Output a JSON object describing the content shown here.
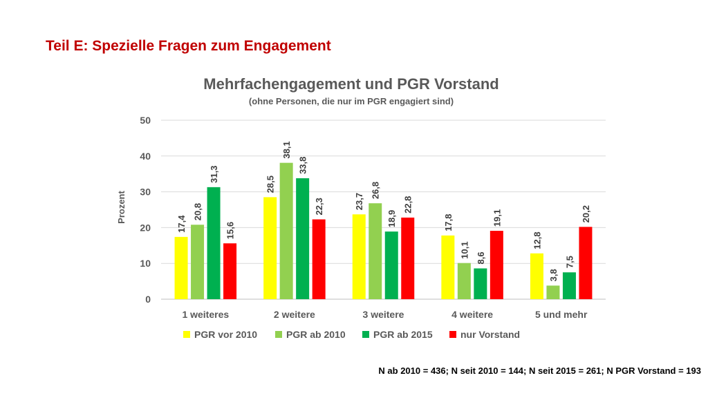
{
  "slide": {
    "title": "Teil E: Spezielle Fragen zum Engagement",
    "footnote": "N ab 2010 = 436; N seit 2010 = 144; N seit 2015 = 261; N PGR Vorstand = 193"
  },
  "chart_data": {
    "type": "bar",
    "title": "Mehrfachengagement und PGR Vorstand",
    "subtitle": "(ohne Personen, die nur im PGR engagiert sind)",
    "xlabel": "",
    "ylabel": "Prozent",
    "ylim": [
      0,
      50
    ],
    "yticks": [
      0,
      10,
      20,
      30,
      40,
      50
    ],
    "grid": true,
    "legend_position": "bottom",
    "categories": [
      "1 weiteres",
      "2 weitere",
      "3 weitere",
      "4 weitere",
      "5 und mehr"
    ],
    "series": [
      {
        "name": "PGR vor 2010",
        "color": "#ffff00",
        "values": [
          17.4,
          28.5,
          23.7,
          17.8,
          12.8
        ],
        "labels": [
          "17,4",
          "28,5",
          "23,7",
          "17,8",
          "12,8"
        ]
      },
      {
        "name": "PGR ab 2010",
        "color": "#92d050",
        "values": [
          20.8,
          38.1,
          26.8,
          10.1,
          3.8
        ],
        "labels": [
          "20,8",
          "38,1",
          "26,8",
          "10,1",
          "3,8"
        ]
      },
      {
        "name": "PGR ab 2015",
        "color": "#00b050",
        "values": [
          31.3,
          33.8,
          18.9,
          8.6,
          7.5
        ],
        "labels": [
          "31,3",
          "33,8",
          "18,9",
          "8,6",
          "7,5"
        ]
      },
      {
        "name": "nur Vorstand",
        "color": "#ff0000",
        "values": [
          15.6,
          22.3,
          22.8,
          19.1,
          20.2
        ],
        "labels": [
          "15,6",
          "22,3",
          "22,8",
          "19,1",
          "20,2"
        ]
      }
    ]
  }
}
